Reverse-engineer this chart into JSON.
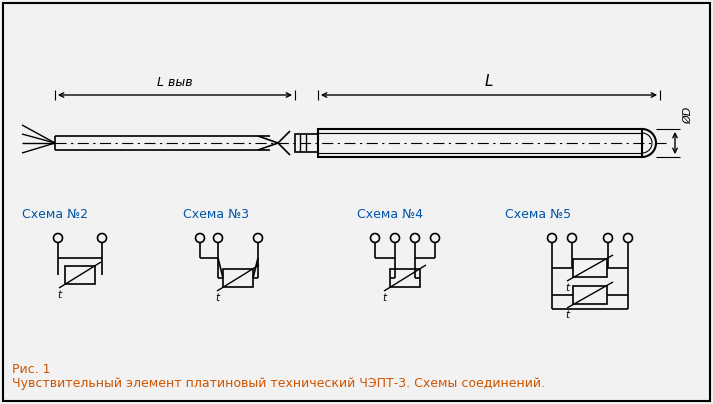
{
  "bg_color": "#f2f2f2",
  "border_color": "#000000",
  "line_color": "#000000",
  "schema_label_color": "#0055aa",
  "orange_color": "#cc5500",
  "schema_labels": [
    "Схема №2",
    "Схема №3",
    "Схема №4",
    "Схема №5"
  ],
  "dim_label_L_vyv": "L выв",
  "dim_label_L": "L",
  "dim_label_D": "ØD",
  "fig_caption": "Рис. 1",
  "fig_description": "Чувствительный элемент платиновый технический ЧЭПТ-3. Схемы соединений."
}
